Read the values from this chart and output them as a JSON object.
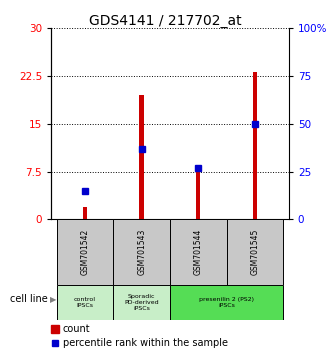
{
  "title": "GDS4141 / 217702_at",
  "samples": [
    "GSM701542",
    "GSM701543",
    "GSM701544",
    "GSM701545"
  ],
  "counts": [
    2.0,
    19.5,
    7.5,
    23.2
  ],
  "percentiles": [
    15.0,
    37.0,
    27.0,
    50.0
  ],
  "ylim_left": [
    0,
    30
  ],
  "ylim_right": [
    0,
    100
  ],
  "yticks_left": [
    0,
    7.5,
    15,
    22.5,
    30
  ],
  "yticks_right": [
    0,
    25,
    50,
    75,
    100
  ],
  "ytick_labels_left": [
    "0",
    "7.5",
    "15",
    "22.5",
    "30"
  ],
  "ytick_labels_right": [
    "0",
    "25",
    "50",
    "75",
    "100%"
  ],
  "bar_color": "#cc0000",
  "percentile_color": "#0000cc",
  "bg_color_samples": "#c8c8c8",
  "title_fontsize": 10,
  "bar_width": 0.08,
  "groups": [
    {
      "start": 0,
      "end": 0,
      "label": "control\nIPSCs",
      "color": "#c8eec8"
    },
    {
      "start": 1,
      "end": 1,
      "label": "Sporadic\nPD-derived\niPSCs",
      "color": "#c8eec8"
    },
    {
      "start": 2,
      "end": 3,
      "label": "presenilin 2 (PS2)\niPSCs",
      "color": "#55dd55"
    }
  ],
  "cell_line_label": "cell line",
  "legend_count": "count",
  "legend_pct": "percentile rank within the sample"
}
